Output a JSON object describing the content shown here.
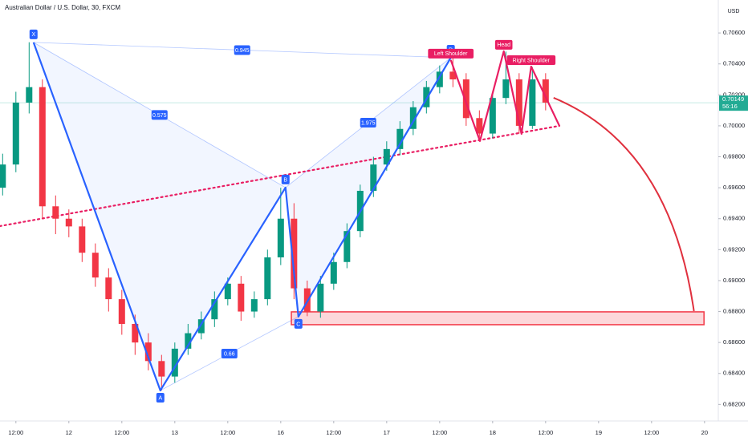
{
  "chart_data": {
    "type": "candlestick",
    "title": "Australian Dollar / U.S. Dollar, 30, FXCM",
    "currency": "USD",
    "xlim": [
      -0.3,
      13.26
    ],
    "ylim": [
      0.68093,
      0.70813
    ],
    "xticks": [
      {
        "value": 0,
        "label": "12:00"
      },
      {
        "value": 1,
        "label": "12"
      },
      {
        "value": 2,
        "label": "12:00"
      },
      {
        "value": 3,
        "label": "13"
      },
      {
        "value": 4,
        "label": "12:00"
      },
      {
        "value": 5,
        "label": "16"
      },
      {
        "value": 6,
        "label": "12:00"
      },
      {
        "value": 7,
        "label": "17"
      },
      {
        "value": 8,
        "label": "12:00"
      },
      {
        "value": 9,
        "label": "18"
      },
      {
        "value": 10,
        "label": "12:00"
      },
      {
        "value": 11,
        "label": "19"
      },
      {
        "value": 12,
        "label": "12:00"
      },
      {
        "value": 13,
        "label": "20"
      }
    ],
    "yticks": [
      {
        "value": 0.706,
        "label": "0.70600"
      },
      {
        "value": 0.704,
        "label": "0.70400"
      },
      {
        "value": 0.702,
        "label": "0.70200"
      },
      {
        "value": 0.7,
        "label": "0.70000"
      },
      {
        "value": 0.698,
        "label": "0.69800"
      },
      {
        "value": 0.696,
        "label": "0.69600"
      },
      {
        "value": 0.694,
        "label": "0.69400"
      },
      {
        "value": 0.692,
        "label": "0.69200"
      },
      {
        "value": 0.69,
        "label": "0.69000"
      },
      {
        "value": 0.688,
        "label": "0.68800"
      },
      {
        "value": 0.686,
        "label": "0.68600"
      },
      {
        "value": 0.684,
        "label": "0.68400"
      },
      {
        "value": 0.682,
        "label": "0.68200"
      }
    ],
    "colors": {
      "up": "#089981",
      "down": "#f23645"
    },
    "candles": {
      "x": [
        -0.25,
        0,
        0.25,
        0.5,
        0.75,
        1,
        1.25,
        1.5,
        1.75,
        2,
        2.25,
        2.5,
        2.75,
        3,
        3.25,
        3.5,
        3.75,
        4,
        4.25,
        4.5,
        4.75,
        5,
        5.25,
        5.5,
        5.75,
        6,
        6.25,
        6.5,
        6.75,
        7,
        7.25,
        7.5,
        7.75,
        8,
        8.25,
        8.5,
        8.75,
        9,
        9.25,
        9.5,
        9.75,
        10
      ],
      "open": [
        0.696,
        0.6975,
        0.7015,
        0.7025,
        0.6948,
        0.694,
        0.6935,
        0.6918,
        0.6902,
        0.6888,
        0.6872,
        0.686,
        0.6848,
        0.6838,
        0.6856,
        0.6866,
        0.6875,
        0.6888,
        0.6898,
        0.688,
        0.6888,
        0.6915,
        0.694,
        0.6895,
        0.688,
        0.6898,
        0.6912,
        0.6932,
        0.6958,
        0.6975,
        0.6985,
        0.6998,
        0.7012,
        0.7025,
        0.7035,
        0.703,
        0.7005,
        0.6995,
        0.7018,
        0.703,
        0.7,
        0.703
      ],
      "high": [
        0.6982,
        0.7022,
        0.7054,
        0.703,
        0.6955,
        0.6946,
        0.694,
        0.6924,
        0.6908,
        0.6894,
        0.6878,
        0.6866,
        0.6852,
        0.686,
        0.6872,
        0.688,
        0.6893,
        0.6902,
        0.6903,
        0.6893,
        0.692,
        0.696,
        0.695,
        0.69,
        0.6903,
        0.6918,
        0.6937,
        0.6962,
        0.698,
        0.699,
        0.7003,
        0.7016,
        0.7029,
        0.7039,
        0.7044,
        0.7034,
        0.701,
        0.7022,
        0.7048,
        0.7034,
        0.7038,
        0.7034
      ],
      "low": [
        0.6955,
        0.697,
        0.7008,
        0.694,
        0.693,
        0.6928,
        0.6912,
        0.6896,
        0.688,
        0.6865,
        0.6852,
        0.6842,
        0.6829,
        0.6834,
        0.6852,
        0.6862,
        0.687,
        0.6884,
        0.6874,
        0.6876,
        0.6884,
        0.691,
        0.6888,
        0.6877,
        0.6876,
        0.6894,
        0.6908,
        0.6928,
        0.6954,
        0.6971,
        0.6981,
        0.6994,
        0.7008,
        0.7021,
        0.7025,
        0.7,
        0.699,
        0.6992,
        0.7014,
        0.6995,
        0.6998,
        0.701
      ],
      "close": [
        0.6975,
        0.7015,
        0.7025,
        0.6948,
        0.694,
        0.6935,
        0.6918,
        0.6902,
        0.6888,
        0.6872,
        0.686,
        0.6848,
        0.6838,
        0.6856,
        0.6866,
        0.6875,
        0.6888,
        0.6898,
        0.688,
        0.6888,
        0.6915,
        0.694,
        0.6895,
        0.688,
        0.6898,
        0.6912,
        0.6932,
        0.6958,
        0.6975,
        0.6985,
        0.6998,
        0.7012,
        0.7025,
        0.7035,
        0.703,
        0.7005,
        0.6995,
        0.7018,
        0.703,
        0.7,
        0.703,
        0.7015
      ]
    },
    "last_price": {
      "value": 0.70149,
      "countdown": "56:16",
      "color": "#22ab94"
    },
    "harmonic": {
      "color": "#2962ff",
      "points": [
        {
          "label": "X",
          "x": 0.333,
          "y": 0.70539
        },
        {
          "label": "A",
          "x": 2.727,
          "y": 0.6829
        },
        {
          "label": "B",
          "x": 5.09,
          "y": 0.69601
        },
        {
          "label": "C",
          "x": 5.333,
          "y": 0.68767
        },
        {
          "label": "D",
          "x": 8.21,
          "y": 0.7044
        }
      ],
      "ratios": [
        0.945,
        0.575,
        1.975,
        0.66
      ]
    },
    "head_shoulders": {
      "color": "#e91e63",
      "labels": [
        "Left Shoulder",
        "Head",
        "Right Shoulder"
      ],
      "x": [
        8.21,
        8.76,
        9.21,
        9.545,
        9.727,
        10.26
      ],
      "y": [
        0.70425,
        0.69902,
        0.70482,
        0.69948,
        0.70383,
        0.7
      ]
    },
    "neckline": {
      "color": "#e91e63",
      "x": [
        -0.303,
        10.26
      ],
      "y": [
        0.69352,
        0.7
      ]
    },
    "zone": {
      "color": "#f23645",
      "x": [
        5.2,
        12.99
      ],
      "y": [
        0.68715,
        0.68798
      ]
    },
    "projection": {
      "color": "#e0303e",
      "x": [
        10.15,
        12.8
      ],
      "y": [
        0.70181,
        0.68803
      ]
    }
  }
}
